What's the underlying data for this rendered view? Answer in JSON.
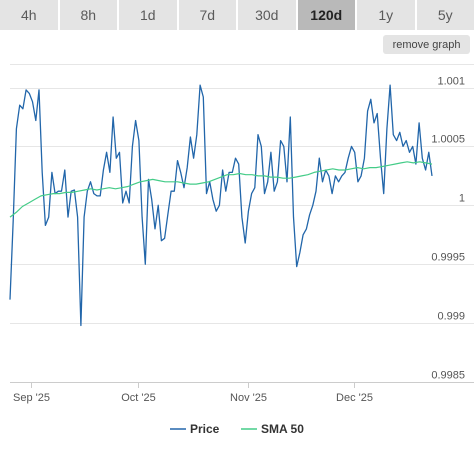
{
  "range_tabs": [
    {
      "label": "4h",
      "active": false
    },
    {
      "label": "8h",
      "active": false
    },
    {
      "label": "1d",
      "active": false
    },
    {
      "label": "7d",
      "active": false
    },
    {
      "label": "30d",
      "active": false
    },
    {
      "label": "120d",
      "active": true
    },
    {
      "label": "1y",
      "active": false
    },
    {
      "label": "5y",
      "active": false
    }
  ],
  "remove_graph_label": "remove graph",
  "chart_data": {
    "type": "line",
    "title": "",
    "xlabel": "",
    "ylabel": "",
    "x_start": "2025-08-26",
    "x_end": "2025-12-23",
    "x_ticks": [
      {
        "label": "Sep '25",
        "date": "2025-09-01"
      },
      {
        "label": "Oct '25",
        "date": "2025-10-01"
      },
      {
        "label": "Nov '25",
        "date": "2025-11-01"
      },
      {
        "label": "Dec '25",
        "date": "2025-12-01"
      }
    ],
    "ylim": [
      0.9985,
      1.0012
    ],
    "y_ticks": [
      0.9985,
      0.999,
      0.9995,
      1,
      1.0005,
      1.001
    ],
    "y_tick_labels": [
      "0.9985",
      "0.999",
      "0.9995",
      "1",
      "1.0005",
      "1.001"
    ],
    "grid": true,
    "legend_position": "bottom",
    "series": [
      {
        "name": "Price",
        "color": "#2266aa",
        "values": [
          0.9992,
          0.99987,
          1.00065,
          1.00085,
          1.00082,
          1.00098,
          1.00095,
          1.00088,
          1.00072,
          1.00098,
          1.00028,
          0.99983,
          0.9999,
          1.00028,
          1.0001,
          1.00012,
          1.00012,
          1.0003,
          0.9999,
          1.00012,
          1.00013,
          0.9999,
          0.99898,
          0.9999,
          1.00012,
          1.0002,
          1.0001,
          1.00008,
          1.00008,
          1.0003,
          1.00045,
          1.00028,
          1.00075,
          1.0004,
          1.00045,
          1.00002,
          1.00012,
          1.00002,
          1.0005,
          1.00072,
          1.00055,
          0.9999,
          0.9995,
          1.00022,
          1.00005,
          0.9998,
          1.0,
          0.9997,
          0.99972,
          0.99992,
          1.00012,
          1.00012,
          1.00038,
          1.00028,
          1.00015,
          1.00032,
          1.00058,
          1.0004,
          1.0006,
          1.00102,
          1.00092,
          1.0001,
          1.0002,
          1.00005,
          0.99995,
          1.0,
          1.0003,
          1.00012,
          1.00028,
          1.00028,
          1.0004,
          1.00035,
          0.9999,
          0.99968,
          0.99995,
          1.0001,
          1.00015,
          1.0006,
          1.0005,
          1.0001,
          1.0002,
          1.00045,
          1.00012,
          1.0002,
          1.00055,
          1.0005,
          1.0002,
          1.00075,
          0.9999,
          0.99948,
          0.9996,
          0.99975,
          0.9998,
          0.99992,
          1.0,
          1.00012,
          1.0004,
          1.0002,
          1.0003,
          1.00025,
          1.0001,
          1.00025,
          1.0002,
          1.00025,
          1.00028,
          1.0004,
          1.0005,
          1.00045,
          1.0002,
          1.00025,
          1.0004,
          1.0008,
          1.0009,
          1.0007,
          1.00078,
          1.0004,
          1.0001,
          1.00065,
          1.00102,
          1.0006,
          1.00055,
          1.00062,
          1.0005,
          1.00055,
          1.00045,
          1.0005,
          1.00035,
          1.0007,
          1.0004,
          1.0003,
          1.00045,
          1.00025
        ]
      },
      {
        "name": "SMA 50",
        "color": "#44cc88",
        "values": [
          0.9999,
          0.99994,
          0.99999,
          1.00002,
          1.00005,
          1.00008,
          1.00009,
          1.0001,
          1.0001,
          1.00011,
          1.00011,
          1.00012,
          1.00013,
          1.00014,
          1.00013,
          1.00014,
          1.00015,
          1.00014,
          1.00015,
          1.00016,
          1.00018,
          1.0002,
          1.00021,
          1.00022,
          1.00021,
          1.0002,
          1.0002,
          1.0002,
          1.00019,
          1.00018,
          1.00018,
          1.00019,
          1.0002,
          1.00022,
          1.00024,
          1.00026,
          1.00026,
          1.00027,
          1.00026,
          1.00026,
          1.00025,
          1.00025,
          1.00024,
          1.00024,
          1.00023,
          1.00023,
          1.00024,
          1.00025,
          1.00026,
          1.00028,
          1.00029,
          1.0003,
          1.00031,
          1.0003,
          1.0003,
          1.00031,
          1.00032,
          1.00031,
          1.00032,
          1.00032,
          1.00033,
          1.00034,
          1.00035,
          1.00036,
          1.00037,
          1.00036,
          1.00037,
          1.00036,
          1.00035
        ]
      }
    ]
  }
}
